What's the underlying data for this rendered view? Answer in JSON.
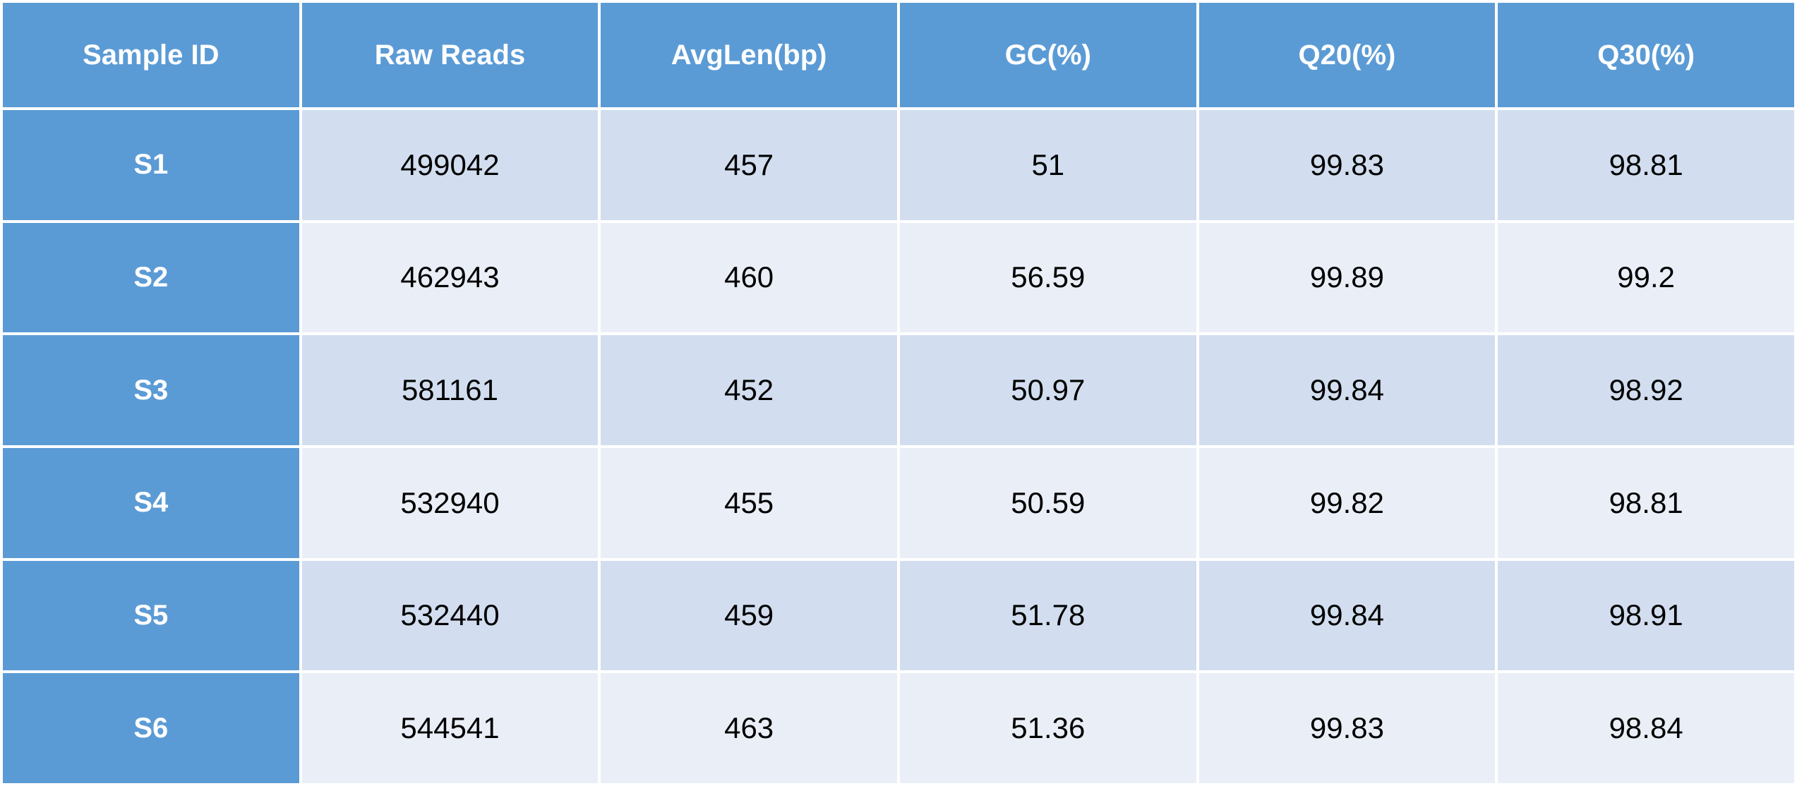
{
  "table": {
    "columns": [
      "Sample ID",
      "Raw Reads",
      "AvgLen(bp)",
      "GC(%)",
      "Q20(%)",
      "Q30(%)"
    ],
    "rows": [
      [
        "S1",
        "499042",
        "457",
        "51",
        "99.83",
        "98.81"
      ],
      [
        "S2",
        "462943",
        "460",
        "56.59",
        "99.89",
        "99.2"
      ],
      [
        "S3",
        "581161",
        "452",
        "50.97",
        "99.84",
        "98.92"
      ],
      [
        "S4",
        "532940",
        "455",
        "50.59",
        "99.82",
        "98.81"
      ],
      [
        "S5",
        "532440",
        "459",
        "51.78",
        "99.84",
        "98.91"
      ],
      [
        "S6",
        "544541",
        "463",
        "51.36",
        "99.83",
        "98.84"
      ]
    ]
  },
  "colors": {
    "header_bg": "#5b9bd5",
    "header_text": "#ffffff",
    "row_band_dark": "#d2deef",
    "row_band_light": "#eaeff7"
  }
}
